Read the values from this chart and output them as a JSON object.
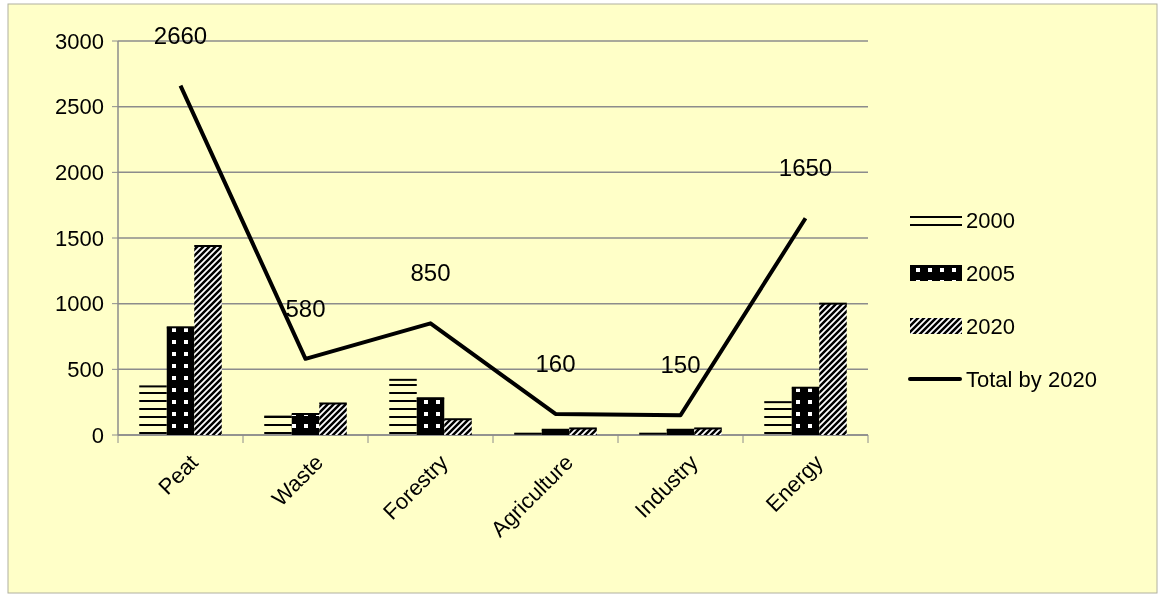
{
  "chart_data": {
    "type": "bar",
    "categories": [
      "Peat",
      "Waste",
      "Forestry",
      "Agriculture",
      "Industry",
      "Energy"
    ],
    "series": [
      {
        "name": "2000",
        "color": "#000000",
        "values": [
          370,
          140,
          420,
          10,
          10,
          250
        ]
      },
      {
        "name": "2005",
        "color": "#000000",
        "values": [
          820,
          160,
          280,
          40,
          40,
          360
        ]
      },
      {
        "name": "2020",
        "color": "#000000",
        "values": [
          1440,
          240,
          120,
          50,
          50,
          1000
        ]
      },
      {
        "name": "Total by 2020",
        "type": "line",
        "color": "#000000",
        "values": [
          2660,
          580,
          850,
          160,
          150,
          1650
        ],
        "value_labels": [
          "2660",
          "580",
          "850",
          "160",
          "150",
          "1650"
        ]
      }
    ],
    "ylim": [
      0,
      3000
    ],
    "yticks": [
      0,
      500,
      1000,
      1500,
      2000,
      2500,
      3000
    ],
    "grid": "y",
    "legend": "right",
    "marker": "none"
  }
}
